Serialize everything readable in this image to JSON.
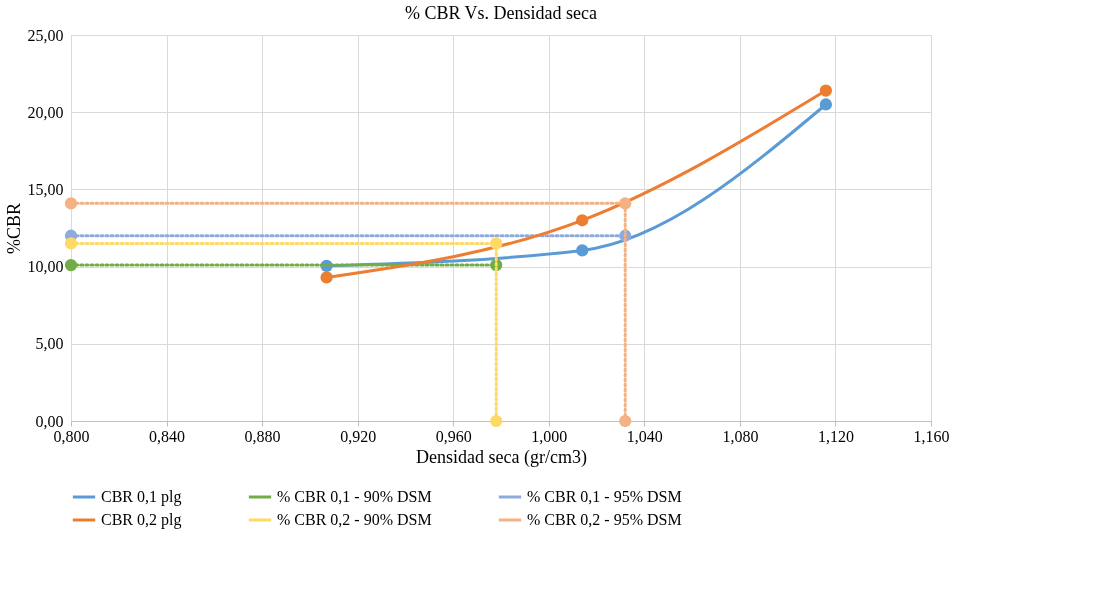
{
  "chart_data": {
    "type": "line",
    "title": "% CBR Vs. Densidad seca",
    "xlabel": "Densidad seca (gr/cm3)",
    "ylabel": "%CBR",
    "series": [
      {
        "name": "CBR 0,1 plg",
        "color": "#5b9bd5",
        "x": [
          0.907,
          1.014,
          1.116
        ],
        "values": [
          10.05,
          11.05,
          20.5
        ],
        "line_style": "solid"
      },
      {
        "name": "% CBR 0,1 - 90% DSM",
        "color": "#70ad47",
        "x": [
          0.8,
          0.978
        ],
        "values": [
          10.1,
          10.1
        ],
        "line_style": "dotted"
      },
      {
        "name": "% CBR 0,1 - 95% DSM",
        "color": "#8faadc",
        "x": [
          0.8,
          1.032
        ],
        "values": [
          12.0,
          12.0
        ],
        "line_style": "dotted"
      },
      {
        "name": "CBR 0,2 plg",
        "color": "#ed7d31",
        "x": [
          0.907,
          1.014,
          1.116
        ],
        "values": [
          9.3,
          13.0,
          21.4
        ],
        "line_style": "solid"
      },
      {
        "name": "% CBR 0,2 - 90% DSM",
        "color": "#ffd966",
        "x": [
          0.8,
          0.978,
          0.978
        ],
        "values": [
          11.5,
          11.5,
          0
        ],
        "line_style": "dotted"
      },
      {
        "name": "% CBR 0,2 - 95% DSM",
        "color": "#f4b183",
        "x": [
          0.8,
          1.032,
          1.032
        ],
        "values": [
          14.1,
          14.1,
          0
        ],
        "line_style": "dotted"
      }
    ],
    "xlim": [
      0.8,
      1.16
    ],
    "xticks": [
      {
        "value": 0.8,
        "label": "0,800"
      },
      {
        "value": 0.84,
        "label": "0,840"
      },
      {
        "value": 0.88,
        "label": "0,880"
      },
      {
        "value": 0.92,
        "label": "0,920"
      },
      {
        "value": 0.96,
        "label": "0,960"
      },
      {
        "value": 1.0,
        "label": "1,000"
      },
      {
        "value": 1.04,
        "label": "1,040"
      },
      {
        "value": 1.08,
        "label": "1,080"
      },
      {
        "value": 1.12,
        "label": "1,120"
      },
      {
        "value": 1.16,
        "label": "1,160"
      }
    ],
    "ylim": [
      0,
      25
    ],
    "yticks": [
      {
        "value": 0,
        "label": "0,00"
      },
      {
        "value": 5,
        "label": "5,00"
      },
      {
        "value": 10,
        "label": "10,00"
      },
      {
        "value": 15,
        "label": "15,00"
      },
      {
        "value": 20,
        "label": "20,00"
      },
      {
        "value": 25,
        "label": "25,00"
      }
    ],
    "grid": true,
    "legend": "bottom",
    "marker": "circle"
  }
}
